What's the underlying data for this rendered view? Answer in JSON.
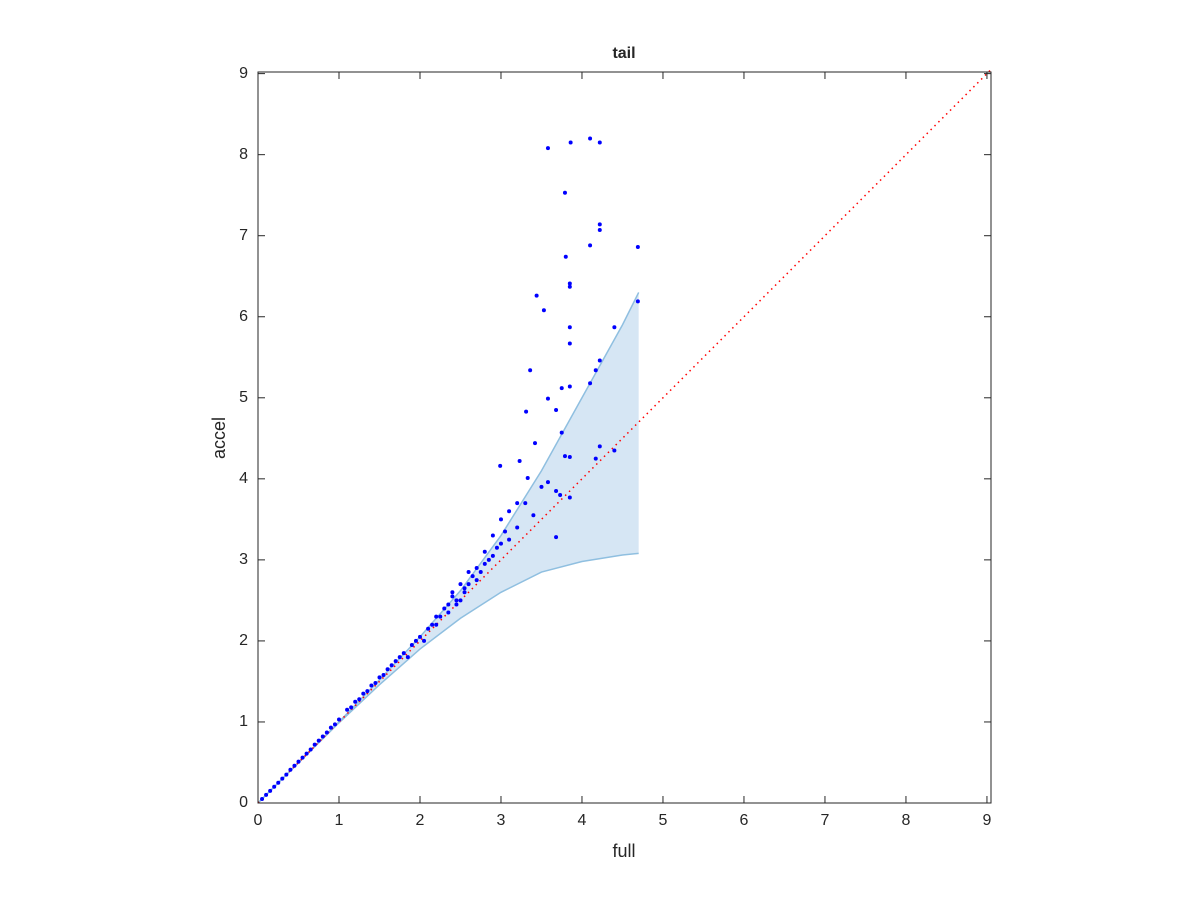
{
  "chart_data": {
    "type": "scatter",
    "title": "tail",
    "xlabel": "full",
    "ylabel": "accel",
    "xlim": [
      0,
      9.05
    ],
    "ylim": [
      0,
      9.02
    ],
    "xticks": [
      0,
      1,
      2,
      3,
      4,
      5,
      6,
      7,
      8,
      9
    ],
    "yticks": [
      0,
      1,
      2,
      3,
      4,
      5,
      6,
      7,
      8,
      9
    ],
    "band": {
      "color": "#d6e6f4",
      "edge_color": "#8fbfe0",
      "x": [
        0,
        1,
        1.5,
        2,
        2.5,
        3,
        3.5,
        4,
        4.5,
        4.7
      ],
      "upper": [
        0,
        1.0,
        1.52,
        2.05,
        2.62,
        3.3,
        4.1,
        5.0,
        5.9,
        6.3
      ],
      "lower": [
        0,
        0.99,
        1.46,
        1.9,
        2.28,
        2.6,
        2.85,
        2.98,
        3.06,
        3.08
      ]
    },
    "reference": {
      "color": "#ff0000",
      "x": [
        0,
        9.05
      ],
      "values": [
        0,
        9.05
      ]
    },
    "series": [
      {
        "color": "#0000ff",
        "x": [
          3.58,
          3.86,
          4.1,
          4.22,
          3.79,
          4.22,
          4.22,
          4.1,
          4.69,
          3.8,
          3.85,
          3.85,
          3.44,
          3.53,
          4.69,
          3.85,
          4.4,
          3.85,
          4.22,
          3.36,
          4.17,
          4.1,
          3.85,
          3.75,
          3.58,
          3.68,
          3.31,
          3.75,
          3.42,
          4.22,
          4.4,
          3.79,
          3.85,
          4.17,
          2.99,
          3.23,
          3.33,
          3.58,
          3.68,
          3.73,
          3.85,
          3.68,
          3.0,
          3.1,
          3.2,
          2.9,
          3.0,
          2.8,
          2.9,
          2.7,
          2.6,
          2.7,
          2.5,
          2.55,
          2.4,
          2.45,
          2.3,
          2.35,
          2.2,
          3.1,
          3.2,
          3.3,
          3.4,
          3.5,
          2.8,
          2.6,
          2.4,
          2.5,
          2.2,
          2.1,
          2.0,
          2.05,
          1.9,
          1.8,
          1.85,
          1.7,
          1.6,
          1.5,
          1.4,
          1.3,
          1.2,
          1.1,
          1.0,
          0.9,
          0.8,
          0.7,
          0.6,
          0.5,
          0.4,
          0.3,
          0.2,
          0.1,
          0.05,
          2.95,
          3.05,
          2.85,
          2.75,
          2.65,
          2.55,
          2.45,
          2.35,
          2.25,
          2.15,
          1.95,
          1.75,
          1.65,
          1.55,
          1.45,
          1.35,
          1.25,
          1.15,
          0.95,
          0.85,
          0.75,
          0.65,
          0.55,
          0.45,
          0.35,
          0.25,
          0.15
        ],
        "values": [
          8.08,
          8.15,
          8.2,
          8.15,
          7.53,
          7.14,
          7.07,
          6.88,
          6.86,
          6.74,
          6.41,
          6.37,
          6.26,
          6.08,
          6.19,
          5.87,
          5.87,
          5.67,
          5.46,
          5.34,
          5.34,
          5.18,
          5.14,
          5.12,
          4.99,
          4.85,
          4.83,
          4.57,
          4.44,
          4.4,
          4.35,
          4.28,
          4.27,
          4.25,
          4.16,
          4.22,
          4.01,
          3.96,
          3.85,
          3.8,
          3.77,
          3.28,
          3.5,
          3.6,
          3.7,
          3.3,
          3.2,
          3.1,
          3.05,
          2.9,
          2.85,
          2.75,
          2.7,
          2.6,
          2.55,
          2.45,
          2.4,
          2.35,
          2.3,
          3.25,
          3.4,
          3.7,
          3.55,
          3.9,
          2.95,
          2.7,
          2.6,
          2.5,
          2.2,
          2.15,
          2.05,
          2.0,
          1.95,
          1.85,
          1.8,
          1.75,
          1.65,
          1.55,
          1.45,
          1.35,
          1.25,
          1.15,
          1.03,
          0.93,
          0.82,
          0.72,
          0.61,
          0.51,
          0.41,
          0.3,
          0.2,
          0.1,
          0.05,
          3.15,
          3.35,
          3.0,
          2.85,
          2.8,
          2.65,
          2.5,
          2.45,
          2.3,
          2.2,
          2.0,
          1.8,
          1.7,
          1.58,
          1.48,
          1.38,
          1.28,
          1.18,
          0.97,
          0.87,
          0.77,
          0.66,
          0.56,
          0.46,
          0.35,
          0.25,
          0.15
        ]
      }
    ]
  }
}
